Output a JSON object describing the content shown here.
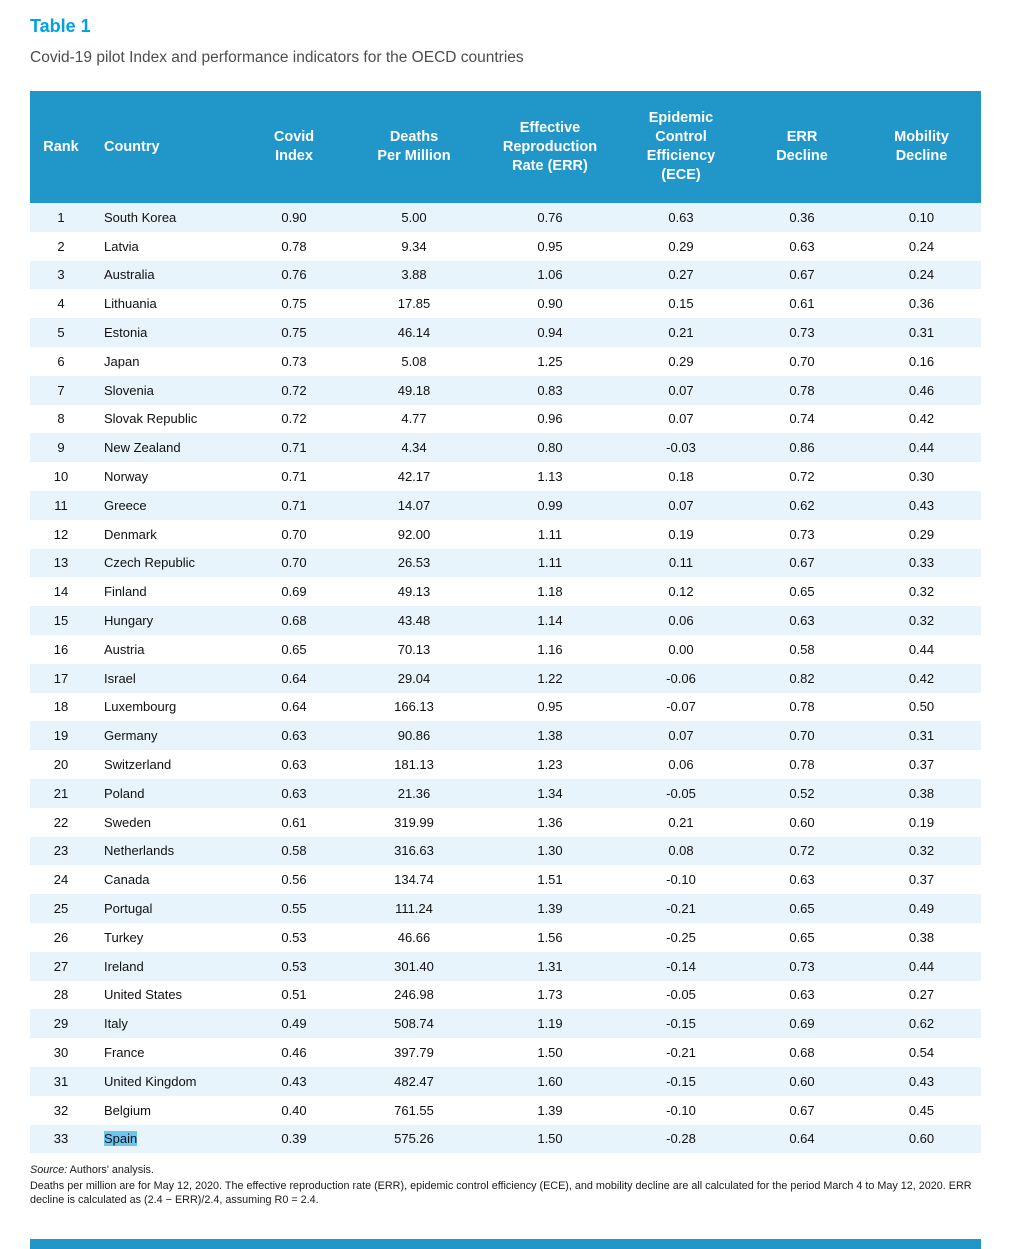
{
  "page": {
    "table_label": "Table 1",
    "subtitle": "Covid-19 pilot Index and performance indicators for the OECD countries"
  },
  "table": {
    "columns": [
      "Rank",
      "Country",
      "Covid\nIndex",
      "Deaths\nPer Million",
      "Effective\nReproduction\nRate (ERR)",
      "Epidemic\nControl\nEfficiency\n(ECE)",
      "ERR\nDecline",
      "Mobility\nDecline"
    ],
    "rows": [
      {
        "cells": [
          "1",
          "South Korea",
          "0.90",
          "5.00",
          "0.76",
          "0.63",
          "0.36",
          "0.10"
        ]
      },
      {
        "cells": [
          "2",
          "Latvia",
          "0.78",
          "9.34",
          "0.95",
          "0.29",
          "0.63",
          "0.24"
        ]
      },
      {
        "cells": [
          "3",
          "Australia",
          "0.76",
          "3.88",
          "1.06",
          "0.27",
          "0.67",
          "0.24"
        ]
      },
      {
        "cells": [
          "4",
          "Lithuania",
          "0.75",
          "17.85",
          "0.90",
          "0.15",
          "0.61",
          "0.36"
        ]
      },
      {
        "cells": [
          "5",
          "Estonia",
          "0.75",
          "46.14",
          "0.94",
          "0.21",
          "0.73",
          "0.31"
        ]
      },
      {
        "cells": [
          "6",
          "Japan",
          "0.73",
          "5.08",
          "1.25",
          "0.29",
          "0.70",
          "0.16"
        ]
      },
      {
        "cells": [
          "7",
          "Slovenia",
          "0.72",
          "49.18",
          "0.83",
          "0.07",
          "0.78",
          "0.46"
        ]
      },
      {
        "cells": [
          "8",
          "Slovak Republic",
          "0.72",
          "4.77",
          "0.96",
          "0.07",
          "0.74",
          "0.42"
        ]
      },
      {
        "cells": [
          "9",
          "New Zealand",
          "0.71",
          "4.34",
          "0.80",
          "-0.03",
          "0.86",
          "0.44"
        ]
      },
      {
        "cells": [
          "10",
          "Norway",
          "0.71",
          "42.17",
          "1.13",
          "0.18",
          "0.72",
          "0.30"
        ]
      },
      {
        "cells": [
          "11",
          "Greece",
          "0.71",
          "14.07",
          "0.99",
          "0.07",
          "0.62",
          "0.43"
        ]
      },
      {
        "cells": [
          "12",
          "Denmark",
          "0.70",
          "92.00",
          "1.11",
          "0.19",
          "0.73",
          "0.29"
        ]
      },
      {
        "cells": [
          "13",
          "Czech Republic",
          "0.70",
          "26.53",
          "1.11",
          "0.11",
          "0.67",
          "0.33"
        ]
      },
      {
        "cells": [
          "14",
          "Finland",
          "0.69",
          "49.13",
          "1.18",
          "0.12",
          "0.65",
          "0.32"
        ]
      },
      {
        "cells": [
          "15",
          "Hungary",
          "0.68",
          "43.48",
          "1.14",
          "0.06",
          "0.63",
          "0.32"
        ]
      },
      {
        "cells": [
          "16",
          "Austria",
          "0.65",
          "70.13",
          "1.16",
          "0.00",
          "0.58",
          "0.44"
        ]
      },
      {
        "cells": [
          "17",
          "Israel",
          "0.64",
          "29.04",
          "1.22",
          "-0.06",
          "0.82",
          "0.42"
        ]
      },
      {
        "cells": [
          "18",
          "Luxembourg",
          "0.64",
          "166.13",
          "0.95",
          "-0.07",
          "0.78",
          "0.50"
        ]
      },
      {
        "cells": [
          "19",
          "Germany",
          "0.63",
          "90.86",
          "1.38",
          "0.07",
          "0.70",
          "0.31"
        ]
      },
      {
        "cells": [
          "20",
          "Switzerland",
          "0.63",
          "181.13",
          "1.23",
          "0.06",
          "0.78",
          "0.37"
        ]
      },
      {
        "cells": [
          "21",
          "Poland",
          "0.63",
          "21.36",
          "1.34",
          "-0.05",
          "0.52",
          "0.38"
        ]
      },
      {
        "cells": [
          "22",
          "Sweden",
          "0.61",
          "319.99",
          "1.36",
          "0.21",
          "0.60",
          "0.19"
        ]
      },
      {
        "cells": [
          "23",
          "Netherlands",
          "0.58",
          "316.63",
          "1.30",
          "0.08",
          "0.72",
          "0.32"
        ]
      },
      {
        "cells": [
          "24",
          "Canada",
          "0.56",
          "134.74",
          "1.51",
          "-0.10",
          "0.63",
          "0.37"
        ]
      },
      {
        "cells": [
          "25",
          "Portugal",
          "0.55",
          "111.24",
          "1.39",
          "-0.21",
          "0.65",
          "0.49"
        ]
      },
      {
        "cells": [
          "26",
          "Turkey",
          "0.53",
          "46.66",
          "1.56",
          "-0.25",
          "0.65",
          "0.38"
        ]
      },
      {
        "cells": [
          "27",
          "Ireland",
          "0.53",
          "301.40",
          "1.31",
          "-0.14",
          "0.73",
          "0.44"
        ]
      },
      {
        "cells": [
          "28",
          "United States",
          "0.51",
          "246.98",
          "1.73",
          "-0.05",
          "0.63",
          "0.27"
        ]
      },
      {
        "cells": [
          "29",
          "Italy",
          "0.49",
          "508.74",
          "1.19",
          "-0.15",
          "0.69",
          "0.62"
        ]
      },
      {
        "cells": [
          "30",
          "France",
          "0.46",
          "397.79",
          "1.50",
          "-0.21",
          "0.68",
          "0.54"
        ]
      },
      {
        "cells": [
          "31",
          "United Kingdom",
          "0.43",
          "482.47",
          "1.60",
          "-0.15",
          "0.60",
          "0.43"
        ]
      },
      {
        "cells": [
          "32",
          "Belgium",
          "0.40",
          "761.55",
          "1.39",
          "-0.10",
          "0.67",
          "0.45"
        ]
      },
      {
        "cells": [
          "33",
          "Spain",
          "0.39",
          "575.26",
          "1.50",
          "-0.28",
          "0.64",
          "0.60"
        ],
        "highlight_country": true
      }
    ]
  },
  "footnotes": {
    "source_label": "Source:",
    "source_text": " Authors' analysis.",
    "note": "Deaths per million are for May 12, 2020. The effective reproduction rate (ERR), epidemic control efficiency (ECE), and mobility decline are all calculated for the period March 4 to May 12, 2020. ERR decline is calculated as (2.4 − ERR)/2.4, assuming R0 = 2.4."
  },
  "colors": {
    "header_blue": "#2196c9",
    "label_blue": "#00a2df",
    "row_shade": "#e8f4fb",
    "selection_highlight": "#6ac6f0"
  }
}
